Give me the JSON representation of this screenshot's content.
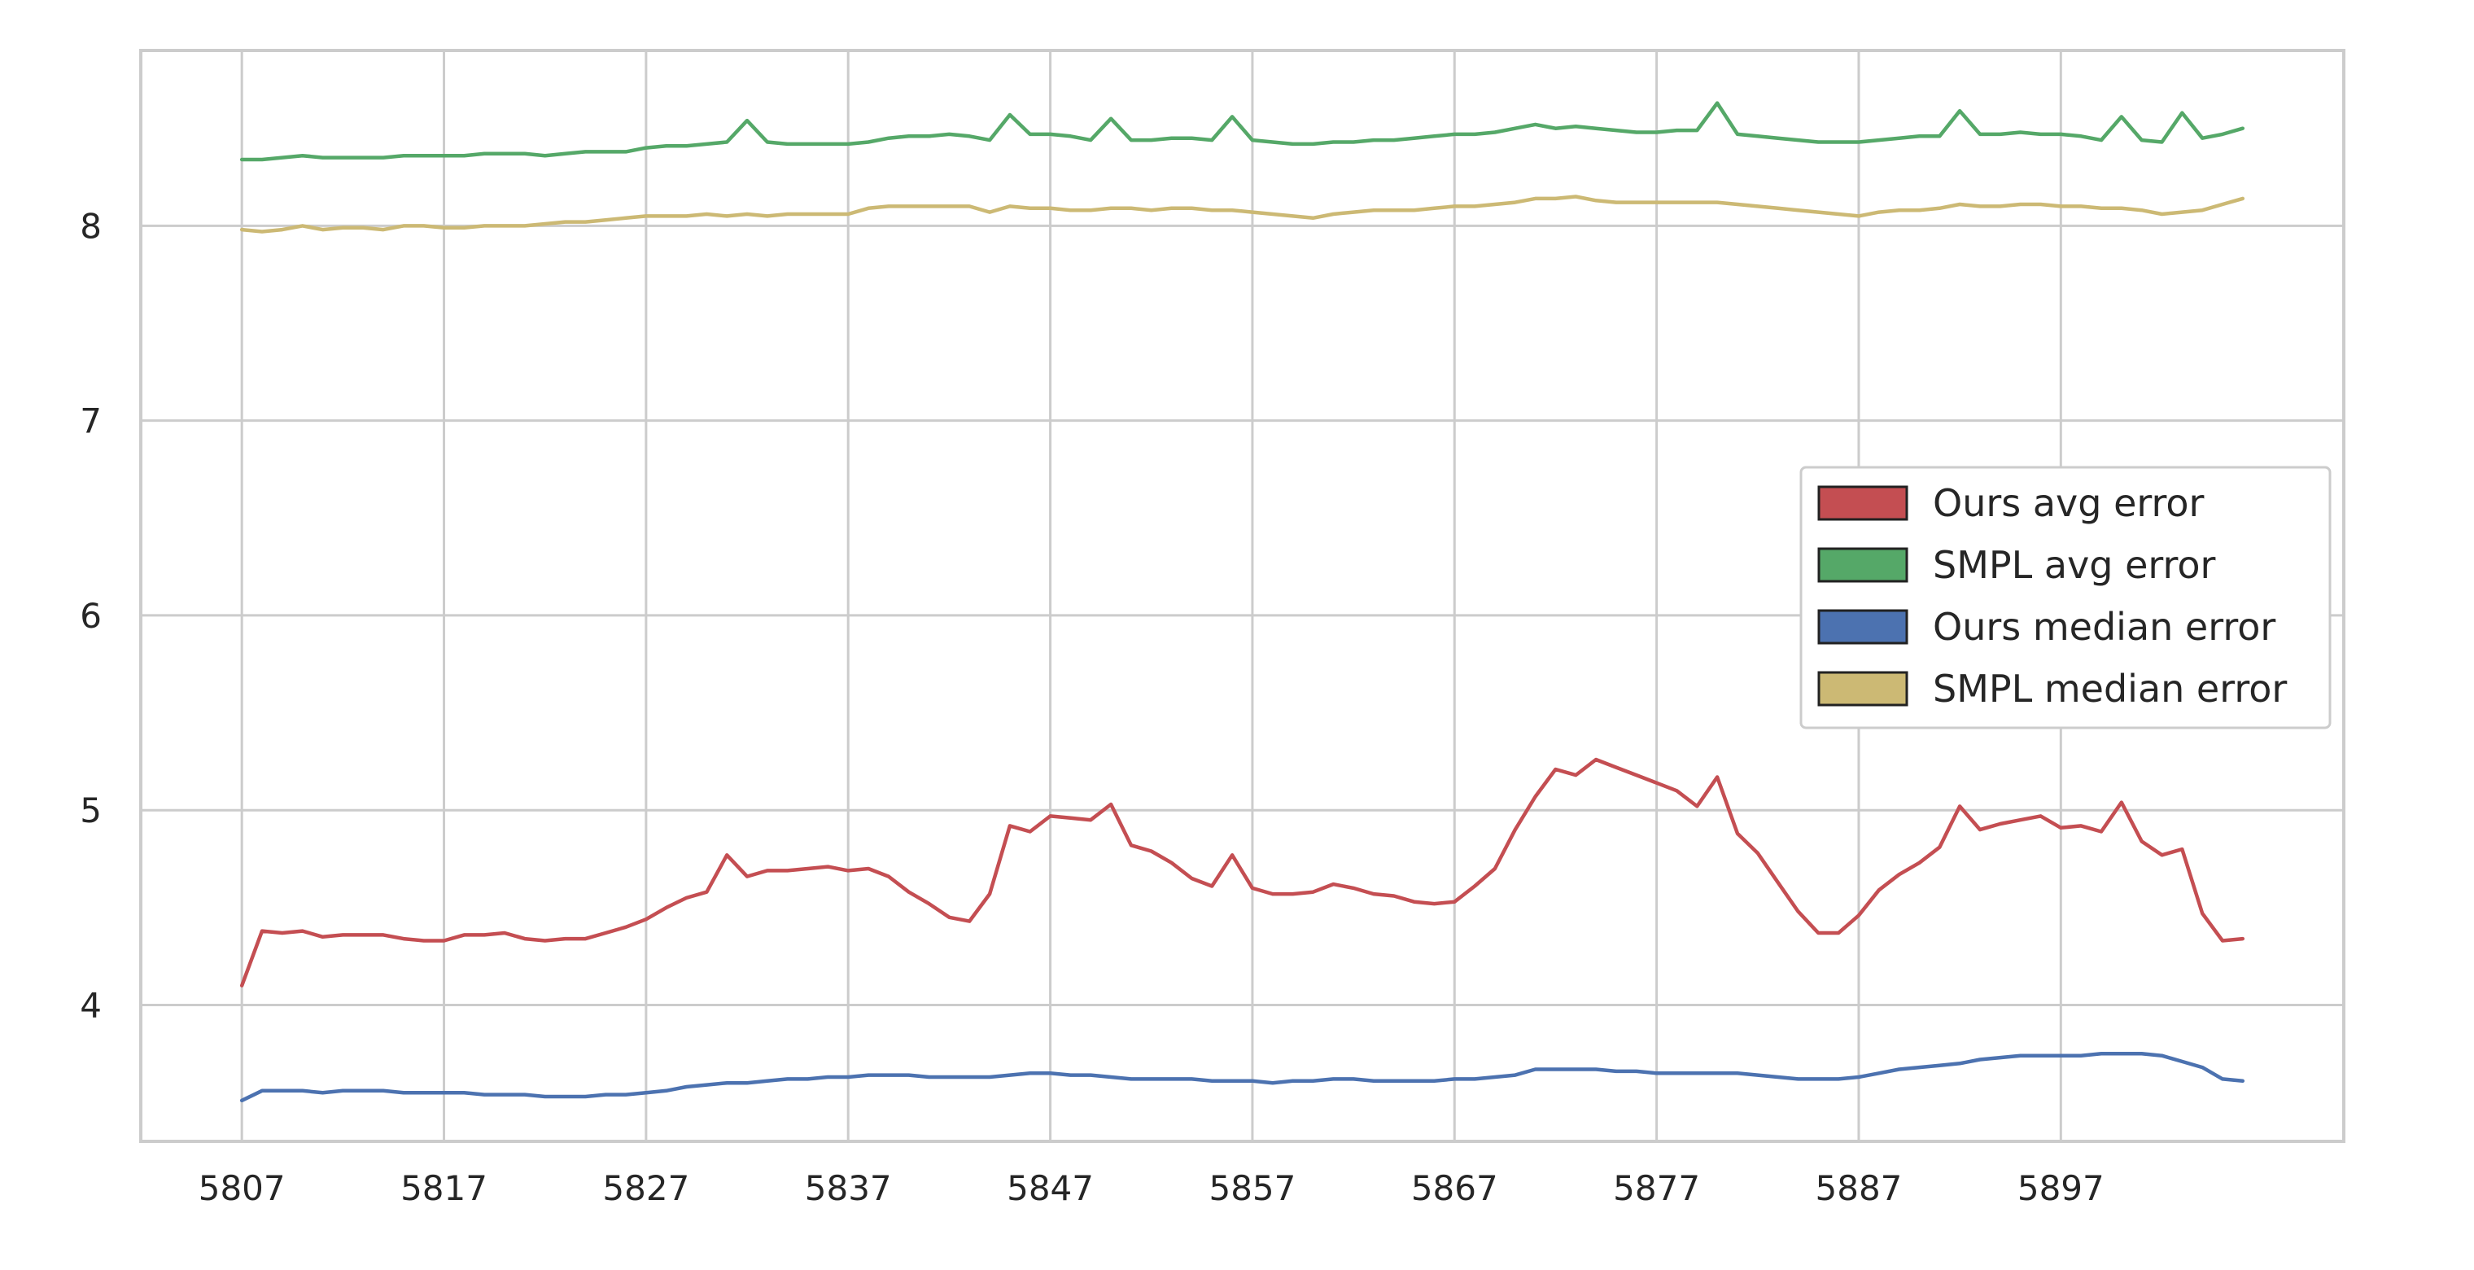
{
  "chart_data": {
    "type": "line",
    "title": "",
    "xlabel": "",
    "ylabel": "",
    "xlim": [
      5802,
      5911
    ],
    "ylim": [
      3.3,
      8.9
    ],
    "xticks": [
      5807,
      5817,
      5827,
      5837,
      5847,
      5857,
      5867,
      5877,
      5887,
      5897
    ],
    "yticks": [
      4,
      5,
      6,
      7,
      8
    ],
    "grid": true,
    "legend_position": "center-right",
    "x_start": 5807,
    "series": [
      {
        "name": "Ours avg error",
        "color": "#c44e52",
        "values": [
          4.1,
          4.38,
          4.37,
          4.38,
          4.35,
          4.36,
          4.36,
          4.36,
          4.34,
          4.33,
          4.33,
          4.36,
          4.36,
          4.37,
          4.34,
          4.33,
          4.34,
          4.34,
          4.37,
          4.4,
          4.44,
          4.5,
          4.55,
          4.58,
          4.77,
          4.66,
          4.69,
          4.69,
          4.7,
          4.71,
          4.69,
          4.7,
          4.66,
          4.58,
          4.52,
          4.45,
          4.43,
          4.57,
          4.92,
          4.89,
          4.97,
          4.96,
          4.95,
          5.03,
          4.82,
          4.79,
          4.73,
          4.65,
          4.61,
          4.77,
          4.6,
          4.57,
          4.57,
          4.58,
          4.62,
          4.6,
          4.57,
          4.56,
          4.53,
          4.52,
          4.53,
          4.61,
          4.7,
          4.9,
          5.07,
          5.21,
          5.18,
          5.26,
          5.22,
          5.18,
          5.14,
          5.1,
          5.02,
          5.17,
          4.88,
          4.78,
          4.63,
          4.48,
          4.37,
          4.37,
          4.46,
          4.59,
          4.67,
          4.73,
          4.81,
          5.02,
          4.9,
          4.93,
          4.95,
          4.97,
          4.91,
          4.92,
          4.89,
          5.04,
          4.84,
          4.77,
          4.8,
          4.47,
          4.33,
          4.34
        ]
      },
      {
        "name": "SMPL avg error",
        "color": "#55a868",
        "values": [
          8.34,
          8.34,
          8.35,
          8.36,
          8.35,
          8.35,
          8.35,
          8.35,
          8.36,
          8.36,
          8.36,
          8.36,
          8.37,
          8.37,
          8.37,
          8.36,
          8.37,
          8.38,
          8.38,
          8.38,
          8.4,
          8.41,
          8.41,
          8.42,
          8.43,
          8.54,
          8.43,
          8.42,
          8.42,
          8.42,
          8.42,
          8.43,
          8.45,
          8.46,
          8.46,
          8.47,
          8.46,
          8.44,
          8.57,
          8.47,
          8.47,
          8.46,
          8.44,
          8.55,
          8.44,
          8.44,
          8.45,
          8.45,
          8.44,
          8.56,
          8.44,
          8.43,
          8.42,
          8.42,
          8.43,
          8.43,
          8.44,
          8.44,
          8.45,
          8.46,
          8.47,
          8.47,
          8.48,
          8.5,
          8.52,
          8.5,
          8.51,
          8.5,
          8.49,
          8.48,
          8.48,
          8.49,
          8.49,
          8.63,
          8.47,
          8.46,
          8.45,
          8.44,
          8.43,
          8.43,
          8.43,
          8.44,
          8.45,
          8.46,
          8.46,
          8.59,
          8.47,
          8.47,
          8.48,
          8.47,
          8.47,
          8.46,
          8.44,
          8.56,
          8.44,
          8.43,
          8.58,
          8.45,
          8.47,
          8.5
        ]
      },
      {
        "name": "Ours median error",
        "color": "#4c72b0",
        "values": [
          3.51,
          3.56,
          3.56,
          3.56,
          3.55,
          3.56,
          3.56,
          3.56,
          3.55,
          3.55,
          3.55,
          3.55,
          3.54,
          3.54,
          3.54,
          3.53,
          3.53,
          3.53,
          3.54,
          3.54,
          3.55,
          3.56,
          3.58,
          3.59,
          3.6,
          3.6,
          3.61,
          3.62,
          3.62,
          3.63,
          3.63,
          3.64,
          3.64,
          3.64,
          3.63,
          3.63,
          3.63,
          3.63,
          3.64,
          3.65,
          3.65,
          3.64,
          3.64,
          3.63,
          3.62,
          3.62,
          3.62,
          3.62,
          3.61,
          3.61,
          3.61,
          3.6,
          3.61,
          3.61,
          3.62,
          3.62,
          3.61,
          3.61,
          3.61,
          3.61,
          3.62,
          3.62,
          3.63,
          3.64,
          3.67,
          3.67,
          3.67,
          3.67,
          3.66,
          3.66,
          3.65,
          3.65,
          3.65,
          3.65,
          3.65,
          3.64,
          3.63,
          3.62,
          3.62,
          3.62,
          3.63,
          3.65,
          3.67,
          3.68,
          3.69,
          3.7,
          3.72,
          3.73,
          3.74,
          3.74,
          3.74,
          3.74,
          3.75,
          3.75,
          3.75,
          3.74,
          3.71,
          3.68,
          3.62,
          3.61
        ]
      },
      {
        "name": "SMPL median error",
        "color": "#ccb974",
        "values": [
          7.98,
          7.97,
          7.98,
          8.0,
          7.98,
          7.99,
          7.99,
          7.98,
          8.0,
          8.0,
          7.99,
          7.99,
          8.0,
          8.0,
          8.0,
          8.01,
          8.02,
          8.02,
          8.03,
          8.04,
          8.05,
          8.05,
          8.05,
          8.06,
          8.05,
          8.06,
          8.05,
          8.06,
          8.06,
          8.06,
          8.06,
          8.09,
          8.1,
          8.1,
          8.1,
          8.1,
          8.1,
          8.07,
          8.1,
          8.09,
          8.09,
          8.08,
          8.08,
          8.09,
          8.09,
          8.08,
          8.09,
          8.09,
          8.08,
          8.08,
          8.07,
          8.06,
          8.05,
          8.04,
          8.06,
          8.07,
          8.08,
          8.08,
          8.08,
          8.09,
          8.1,
          8.1,
          8.11,
          8.12,
          8.14,
          8.14,
          8.15,
          8.13,
          8.12,
          8.12,
          8.12,
          8.12,
          8.12,
          8.12,
          8.11,
          8.1,
          8.09,
          8.08,
          8.07,
          8.06,
          8.05,
          8.07,
          8.08,
          8.08,
          8.09,
          8.11,
          8.1,
          8.1,
          8.11,
          8.11,
          8.1,
          8.1,
          8.09,
          8.09,
          8.08,
          8.06,
          8.07,
          8.08,
          8.11,
          8.14
        ]
      }
    ]
  }
}
